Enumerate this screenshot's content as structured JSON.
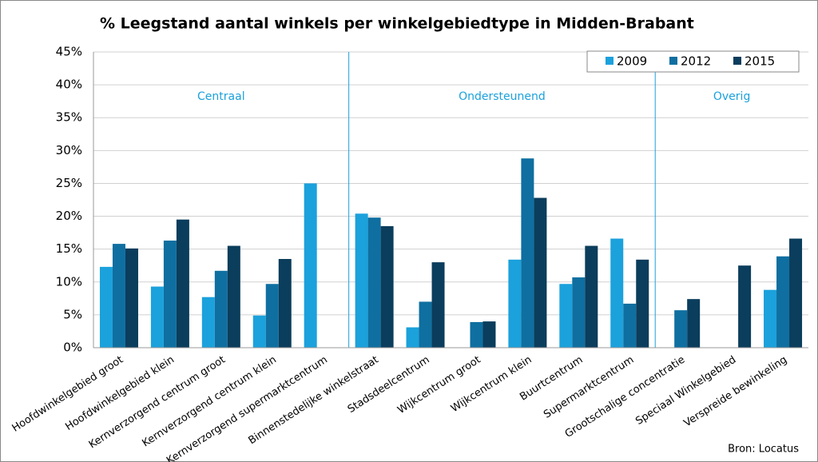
{
  "chart_data": {
    "type": "bar",
    "title": "% Leegstand aantal winkels per winkelgebiedtype in Midden-Brabant",
    "categories": [
      "Hoofdwinkelgebied groot",
      "Hoofdwinkelgebied klein",
      "Kernverzorgend centrum groot",
      "Kernverzorgend centrum klein",
      "Kernverzorgend supermarktcentrum",
      "Binnenstedelijke winkelstraat",
      "Stadsdeelcentrum",
      "Wijkcentrum groot",
      "Wijkcentrum klein",
      "Buurtcentrum",
      "Supermarktcentrum",
      "Grootschalige concentratie",
      "Speciaal Winkelgebied",
      "Verspreide bewinkeling"
    ],
    "series": [
      {
        "name": "2009",
        "color": "#1ba1dc",
        "values": [
          12.3,
          9.3,
          7.7,
          4.9,
          25,
          20.4,
          3.1,
          null,
          13.4,
          9.7,
          16.6,
          null,
          null,
          8.8
        ]
      },
      {
        "name": "2012",
        "color": "#0f6fa0",
        "values": [
          15.8,
          16.3,
          11.7,
          9.7,
          null,
          19.8,
          7.0,
          3.9,
          28.8,
          10.7,
          6.7,
          5.7,
          null,
          13.9
        ]
      },
      {
        "name": "2015",
        "color": "#0b3d5c",
        "values": [
          15.1,
          19.5,
          15.5,
          13.5,
          null,
          18.5,
          13.0,
          4.0,
          22.8,
          15.5,
          13.4,
          7.4,
          12.5,
          16.6
        ]
      }
    ],
    "groups": [
      "Centraal",
      "Ondersteunend",
      "Overig"
    ],
    "ylim": [
      0,
      45
    ],
    "yticks": [
      {
        "value": 0,
        "label": "0%"
      },
      {
        "value": 5,
        "label": "5%"
      },
      {
        "value": 10,
        "label": "10%"
      },
      {
        "value": 15,
        "label": "15%"
      },
      {
        "value": 20,
        "label": "20%"
      },
      {
        "value": 25,
        "label": "25%"
      },
      {
        "value": 30,
        "label": "30%"
      },
      {
        "value": 35,
        "label": "35%"
      },
      {
        "value": 40,
        "label": "40%"
      },
      {
        "value": 45,
        "label": "45%"
      }
    ],
    "grid": true,
    "legend": "top-right",
    "source": "Bron: Locatus"
  }
}
